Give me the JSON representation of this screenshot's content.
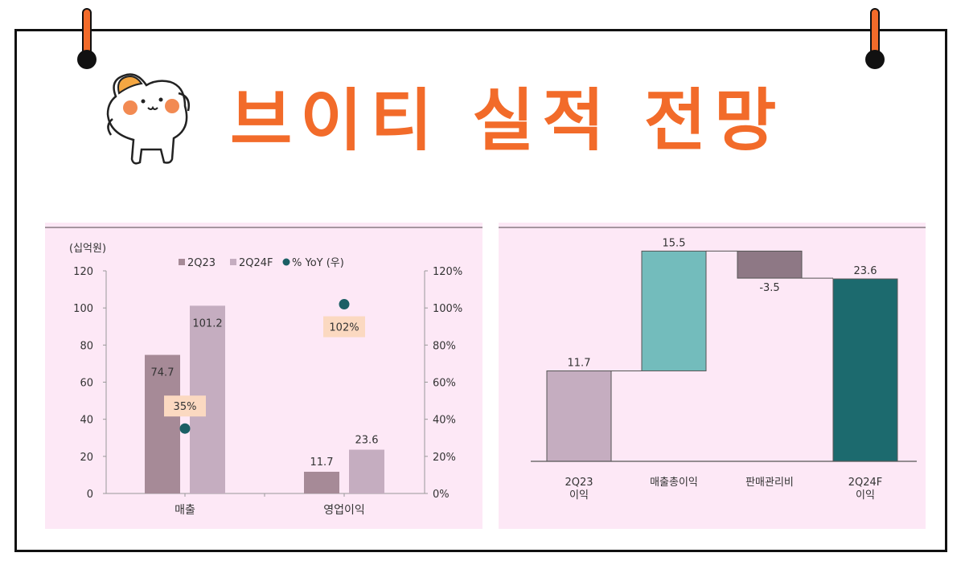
{
  "title": "브이티 실적 전망",
  "colors": {
    "accent": "#f26b2a",
    "panel_bg": "#fde8f6",
    "bar_2q23": "#a68a97",
    "bar_2q24f": "#c5adc0",
    "yoy_dot": "#1c5f65",
    "yoy_label_bg": "#fbd9c1",
    "wf_start": "#c5adc0",
    "wf_up": "#73bcbc",
    "wf_down": "#8e7885",
    "wf_end": "#1c6a6e"
  },
  "chart_data": [
    {
      "type": "bar",
      "unit_label": "(십억원)",
      "categories": [
        "매출",
        "영업이익"
      ],
      "series": [
        {
          "name": "2Q23",
          "values": [
            74.7,
            11.7
          ]
        },
        {
          "name": "2Q24F",
          "values": [
            101.2,
            23.6
          ]
        }
      ],
      "secondary_series": {
        "name": "% YoY (우)",
        "values": [
          35,
          102
        ],
        "labels": [
          "35%",
          "102%"
        ]
      },
      "y_ticks": [
        "0",
        "20",
        "40",
        "60",
        "80",
        "100",
        "120"
      ],
      "y2_ticks": [
        "0%",
        "20%",
        "40%",
        "60%",
        "80%",
        "100%",
        "120%"
      ],
      "value_labels": [
        [
          "74.7",
          "11.7"
        ],
        [
          "101.2",
          "23.6"
        ]
      ],
      "ylim": [
        0,
        120
      ],
      "y2lim": [
        0,
        120
      ],
      "legend": "top"
    },
    {
      "type": "bar",
      "subtype": "waterfall",
      "categories": [
        "2Q23\n이익",
        "매출총이익",
        "판매관리비",
        "2Q24F\n이익"
      ],
      "values": [
        11.7,
        15.5,
        -3.5,
        23.6
      ],
      "value_labels": [
        "11.7",
        "15.5",
        "-3.5",
        "23.6"
      ]
    }
  ]
}
